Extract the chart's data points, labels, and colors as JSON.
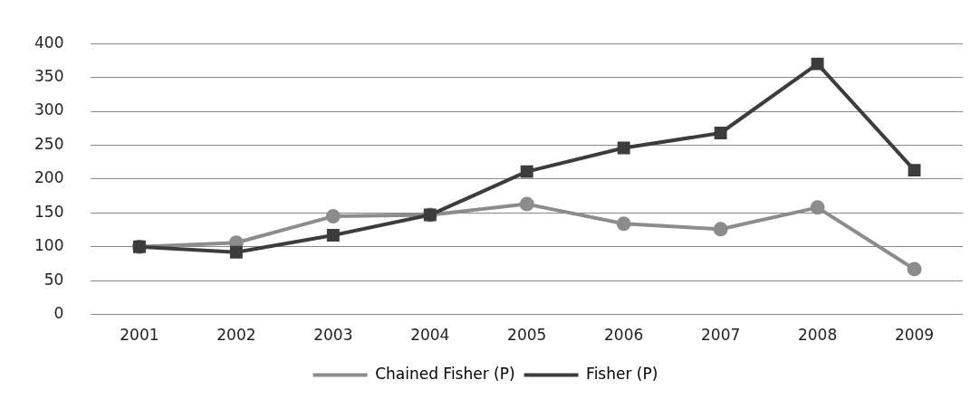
{
  "chart_data": {
    "type": "line",
    "categories": [
      "2001",
      "2002",
      "2003",
      "2004",
      "2005",
      "2006",
      "2007",
      "2008",
      "2009"
    ],
    "series": [
      {
        "name": "Chained Fisher (P)",
        "color": "#8c8c8c",
        "marker": "circle",
        "values": [
          100,
          106,
          145,
          147,
          163,
          134,
          126,
          158,
          67
        ]
      },
      {
        "name": "Fisher (P)",
        "color": "#3c3c3c",
        "marker": "square",
        "values": [
          100,
          92,
          117,
          147,
          211,
          246,
          268,
          370,
          213
        ]
      }
    ],
    "ylim": [
      0,
      400
    ],
    "yticks": [
      0,
      50,
      100,
      150,
      200,
      250,
      300,
      350,
      400
    ],
    "grid": "y",
    "legend": "bottom",
    "line_style": "solid"
  }
}
